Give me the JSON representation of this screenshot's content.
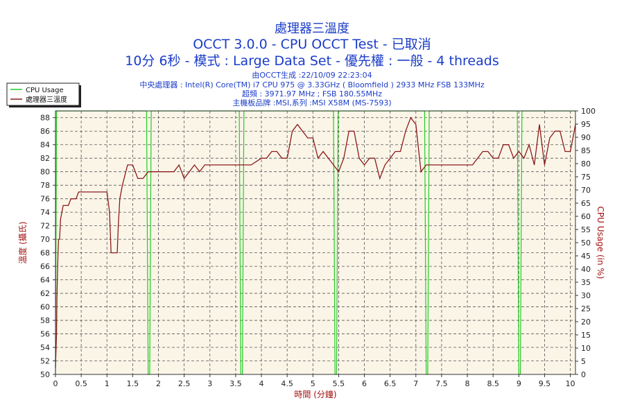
{
  "header": {
    "title": "處理器三溫度",
    "subtitle": "OCCT 3.0.0 - CPU OCCT Test - 已取消",
    "run_info": "10分 6秒 - 模式 : Large Data Set - 優先權 : 一般 - 4 threads",
    "generated": "由OCCT生成 :22/10/09 22:23:04",
    "cpu": "中央處理器 : Intel(R) Core(TM) i7 CPU 975 @ 3.33GHz ( Bloomfield ) 2933 MHz FSB 133MHz",
    "overclock": "超頻 : 3971.97 MHz ; FSB 180.55MHz",
    "motherboard": "主機板品牌 :MSI,系列 :MSI X58M (MS-7593)"
  },
  "legend": {
    "cpu_usage": "CPU Usage",
    "temperature": "處理器三溫度"
  },
  "colors": {
    "plot_bg": "#fbf5e8",
    "temp_line": "#8b1a1a",
    "usage_line": "#22cc22",
    "header_text": "#1a3cc8",
    "axis_text": "#a01010"
  },
  "chart_data": {
    "type": "line",
    "title": "處理器三溫度",
    "xlabel": "時間 (分鐘)",
    "ylabel": "溫度 (攝氏)",
    "y2label": "CPU Usage (in %)",
    "xlim": [
      0,
      10.1
    ],
    "ylim": [
      50,
      89
    ],
    "y2lim": [
      0,
      100
    ],
    "x_ticks": [
      "0",
      "0.5",
      "1",
      "1.5",
      "2",
      "2.5",
      "3",
      "3.5",
      "4",
      "4.5",
      "5",
      "5.5",
      "6",
      "6.5",
      "7",
      "7.5",
      "8",
      "8.5",
      "9",
      "9.5",
      "10"
    ],
    "y_ticks": [
      "50",
      "52",
      "54",
      "56",
      "58",
      "60",
      "62",
      "64",
      "66",
      "68",
      "70",
      "72",
      "74",
      "76",
      "78",
      "80",
      "82",
      "84",
      "86",
      "88"
    ],
    "y2_ticks": [
      "0",
      "5",
      "10",
      "15",
      "20",
      "25",
      "30",
      "35",
      "40",
      "45",
      "50",
      "55",
      "60",
      "65",
      "70",
      "75",
      "80",
      "85",
      "90",
      "95",
      "100"
    ],
    "grid": true,
    "legend_position": "top-left",
    "series": [
      {
        "name": "處理器三溫度",
        "axis": "left",
        "x": [
          0,
          0.02,
          0.03,
          0.05,
          0.06,
          0.07,
          0.08,
          0.1,
          0.15,
          0.2,
          0.25,
          0.3,
          0.35,
          0.4,
          0.45,
          0.5,
          0.55,
          0.6,
          0.7,
          0.8,
          0.9,
          1.0,
          1.05,
          1.08,
          1.1,
          1.2,
          1.22,
          1.25,
          1.3,
          1.4,
          1.5,
          1.6,
          1.7,
          1.8,
          1.9,
          2.0,
          2.1,
          2.2,
          2.3,
          2.4,
          2.5,
          2.6,
          2.7,
          2.8,
          2.9,
          3.0,
          3.2,
          3.4,
          3.6,
          3.8,
          4.0,
          4.1,
          4.2,
          4.3,
          4.4,
          4.5,
          4.6,
          4.7,
          4.8,
          4.9,
          5.0,
          5.1,
          5.2,
          5.3,
          5.4,
          5.5,
          5.6,
          5.7,
          5.8,
          5.9,
          6.0,
          6.1,
          6.2,
          6.3,
          6.4,
          6.5,
          6.6,
          6.7,
          6.8,
          6.9,
          7.0,
          7.1,
          7.2,
          7.3,
          7.4,
          7.6,
          7.8,
          8.0,
          8.1,
          8.2,
          8.3,
          8.4,
          8.5,
          8.6,
          8.7,
          8.8,
          8.9,
          9.0,
          9.1,
          9.2,
          9.3,
          9.4,
          9.5,
          9.6,
          9.7,
          9.8,
          9.9,
          10.0,
          10.1
        ],
        "y": [
          51,
          56,
          62,
          68,
          70,
          70,
          70,
          73,
          75,
          75,
          75,
          76,
          76,
          76,
          77,
          77,
          77,
          77,
          77,
          77,
          77,
          77,
          74,
          68,
          68,
          68,
          72,
          76,
          78,
          81,
          81,
          79,
          79,
          80,
          80,
          80,
          80,
          80,
          80,
          81,
          79,
          80,
          81,
          80,
          81,
          81,
          81,
          81,
          81,
          81,
          82,
          82,
          83,
          83,
          82,
          82,
          86,
          87,
          86,
          85,
          85,
          82,
          83,
          82,
          81,
          80,
          82,
          86,
          86,
          82,
          81,
          82,
          82,
          79,
          81,
          82,
          83,
          83,
          86,
          88,
          87,
          80,
          81,
          81,
          81,
          81,
          81,
          81,
          81,
          82,
          83,
          83,
          82,
          82,
          84,
          84,
          82,
          83,
          82,
          84,
          81,
          87,
          81,
          85,
          86,
          86,
          83,
          83,
          87
        ]
      },
      {
        "name": "CPU Usage",
        "axis": "right",
        "x": [
          0,
          0.02,
          0.03,
          0.05,
          0.06,
          1.77,
          1.8,
          1.83,
          1.86,
          3.57,
          3.6,
          3.63,
          3.66,
          5.4,
          5.43,
          5.46,
          5.49,
          7.17,
          7.2,
          7.23,
          7.26,
          8.97,
          9.0,
          9.03,
          9.06,
          10.1
        ],
        "y": [
          0,
          100,
          100,
          100,
          100,
          100,
          0,
          0,
          100,
          100,
          0,
          0,
          100,
          100,
          0,
          0,
          100,
          100,
          0,
          0,
          100,
          100,
          0,
          0,
          100,
          100
        ]
      }
    ]
  }
}
